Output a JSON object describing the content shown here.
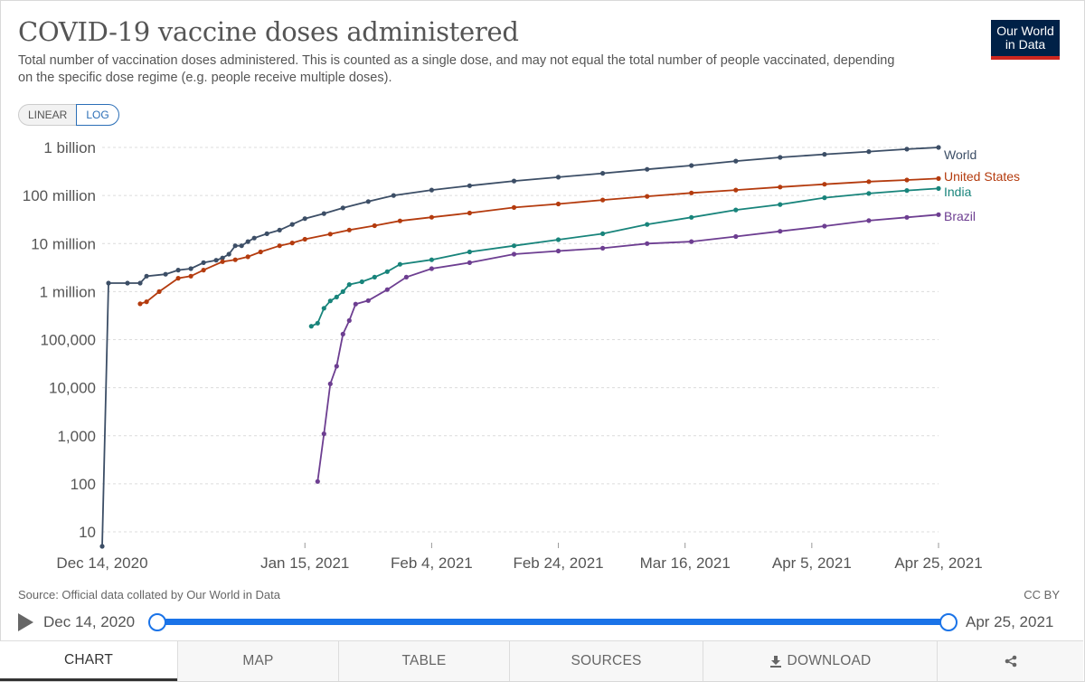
{
  "title": "COVID-19 vaccine doses administered",
  "subtitle": "Total number of vaccination doses administered. This is counted as a single dose, and may not equal the total number of people vaccinated, depending on the specific dose regime (e.g. people receive multiple doses).",
  "logo": {
    "line1": "Our World",
    "line2": "in Data"
  },
  "scale_toggle": {
    "linear_label": "LINEAR",
    "log_label": "LOG",
    "selected": "LOG"
  },
  "source": "Source: Official data collated by Our World in Data",
  "license": "CC BY",
  "timeline": {
    "start_label": "Dec 14, 2020",
    "end_label": "Apr 25, 2021"
  },
  "tabs": {
    "chart": "CHART",
    "map": "MAP",
    "table": "TABLE",
    "sources": "SOURCES",
    "download": "DOWNLOAD"
  },
  "icons": {
    "play": "play-icon",
    "download": "download-icon",
    "share": "share-icon"
  },
  "chart_data": {
    "type": "line",
    "y_scale": "log",
    "title": "COVID-19 vaccine doses administered",
    "ylim": [
      10,
      1000000000
    ],
    "xlim": [
      "2020-12-14",
      "2021-04-25"
    ],
    "y_ticks": [
      {
        "value": 10,
        "label": "10"
      },
      {
        "value": 100,
        "label": "100"
      },
      {
        "value": 1000,
        "label": "1,000"
      },
      {
        "value": 10000,
        "label": "10,000"
      },
      {
        "value": 100000,
        "label": "100,000"
      },
      {
        "value": 1000000,
        "label": "1 million"
      },
      {
        "value": 10000000,
        "label": "10 million"
      },
      {
        "value": 100000000,
        "label": "100 million"
      },
      {
        "value": 1000000000,
        "label": "1 billion"
      }
    ],
    "x_ticks": [
      {
        "date": "2020-12-14",
        "label": "Dec 14, 2020"
      },
      {
        "date": "2021-01-15",
        "label": "Jan 15, 2021"
      },
      {
        "date": "2021-02-04",
        "label": "Feb 4, 2021"
      },
      {
        "date": "2021-02-24",
        "label": "Feb 24, 2021"
      },
      {
        "date": "2021-03-16",
        "label": "Mar 16, 2021"
      },
      {
        "date": "2021-04-05",
        "label": "Apr 5, 2021"
      },
      {
        "date": "2021-04-25",
        "label": "Apr 25, 2021"
      }
    ],
    "grid": true,
    "legend": "inline-right",
    "series": [
      {
        "name": "World",
        "color": "#3c4e66",
        "points": [
          [
            "2020-12-14",
            5
          ],
          [
            "2020-12-15",
            1500000
          ],
          [
            "2020-12-18",
            1500000
          ],
          [
            "2020-12-20",
            1500000
          ],
          [
            "2020-12-21",
            2100000
          ],
          [
            "2020-12-24",
            2300000
          ],
          [
            "2020-12-26",
            2800000
          ],
          [
            "2020-12-28",
            3000000
          ],
          [
            "2020-12-30",
            4000000
          ],
          [
            "2021-01-01",
            4500000
          ],
          [
            "2021-01-02",
            5000000
          ],
          [
            "2021-01-03",
            6000000
          ],
          [
            "2021-01-04",
            9000000
          ],
          [
            "2021-01-05",
            9000000
          ],
          [
            "2021-01-06",
            11000000
          ],
          [
            "2021-01-07",
            13000000
          ],
          [
            "2021-01-09",
            16000000
          ],
          [
            "2021-01-11",
            19000000
          ],
          [
            "2021-01-13",
            25000000
          ],
          [
            "2021-01-15",
            33000000
          ],
          [
            "2021-01-18",
            42000000
          ],
          [
            "2021-01-21",
            55000000
          ],
          [
            "2021-01-25",
            75000000
          ],
          [
            "2021-01-29",
            100000000
          ],
          [
            "2021-02-04",
            130000000
          ],
          [
            "2021-02-10",
            160000000
          ],
          [
            "2021-02-17",
            200000000
          ],
          [
            "2021-02-24",
            240000000
          ],
          [
            "2021-03-03",
            290000000
          ],
          [
            "2021-03-10",
            350000000
          ],
          [
            "2021-03-17",
            420000000
          ],
          [
            "2021-03-24",
            520000000
          ],
          [
            "2021-03-31",
            620000000
          ],
          [
            "2021-04-07",
            720000000
          ],
          [
            "2021-04-14",
            820000000
          ],
          [
            "2021-04-20",
            920000000
          ],
          [
            "2021-04-25",
            1000000000
          ]
        ]
      },
      {
        "name": "United States",
        "color": "#b43b0e",
        "points": [
          [
            "2020-12-20",
            556000
          ],
          [
            "2020-12-21",
            614000
          ],
          [
            "2020-12-23",
            1000000
          ],
          [
            "2020-12-26",
            1900000
          ],
          [
            "2020-12-28",
            2100000
          ],
          [
            "2020-12-30",
            2800000
          ],
          [
            "2021-01-02",
            4200000
          ],
          [
            "2021-01-04",
            4600000
          ],
          [
            "2021-01-06",
            5300000
          ],
          [
            "2021-01-08",
            6700000
          ],
          [
            "2021-01-11",
            9000000
          ],
          [
            "2021-01-13",
            10300000
          ],
          [
            "2021-01-15",
            12300000
          ],
          [
            "2021-01-19",
            15700000
          ],
          [
            "2021-01-22",
            19100000
          ],
          [
            "2021-01-26",
            23500000
          ],
          [
            "2021-01-30",
            29600000
          ],
          [
            "2021-02-04",
            35200000
          ],
          [
            "2021-02-10",
            43200000
          ],
          [
            "2021-02-17",
            56300000
          ],
          [
            "2021-02-24",
            66500000
          ],
          [
            "2021-03-03",
            80500000
          ],
          [
            "2021-03-10",
            95700000
          ],
          [
            "2021-03-17",
            113000000
          ],
          [
            "2021-03-24",
            130000000
          ],
          [
            "2021-03-31",
            150000000
          ],
          [
            "2021-04-07",
            171000000
          ],
          [
            "2021-04-14",
            194000000
          ],
          [
            "2021-04-20",
            210000000
          ],
          [
            "2021-04-25",
            225000000
          ]
        ]
      },
      {
        "name": "India",
        "color": "#18847b",
        "points": [
          [
            "2021-01-16",
            190000
          ],
          [
            "2021-01-17",
            220000
          ],
          [
            "2021-01-18",
            450000
          ],
          [
            "2021-01-19",
            640000
          ],
          [
            "2021-01-20",
            770000
          ],
          [
            "2021-01-21",
            1000000
          ],
          [
            "2021-01-22",
            1400000
          ],
          [
            "2021-01-24",
            1600000
          ],
          [
            "2021-01-26",
            2000000
          ],
          [
            "2021-01-28",
            2600000
          ],
          [
            "2021-01-30",
            3700000
          ],
          [
            "2021-02-04",
            4600000
          ],
          [
            "2021-02-10",
            6700000
          ],
          [
            "2021-02-17",
            9000000
          ],
          [
            "2021-02-24",
            12000000
          ],
          [
            "2021-03-03",
            16000000
          ],
          [
            "2021-03-10",
            25000000
          ],
          [
            "2021-03-17",
            35000000
          ],
          [
            "2021-03-24",
            50000000
          ],
          [
            "2021-03-31",
            65000000
          ],
          [
            "2021-04-07",
            90000000
          ],
          [
            "2021-04-14",
            110000000
          ],
          [
            "2021-04-20",
            127000000
          ],
          [
            "2021-04-25",
            140000000
          ]
        ]
      },
      {
        "name": "Brazil",
        "color": "#6d3e91",
        "points": [
          [
            "2021-01-17",
            112
          ],
          [
            "2021-01-18",
            1100
          ],
          [
            "2021-01-19",
            12000
          ],
          [
            "2021-01-20",
            28000
          ],
          [
            "2021-01-21",
            130000
          ],
          [
            "2021-01-22",
            250000
          ],
          [
            "2021-01-23",
            550000
          ],
          [
            "2021-01-25",
            650000
          ],
          [
            "2021-01-28",
            1100000
          ],
          [
            "2021-01-31",
            2000000
          ],
          [
            "2021-02-04",
            3000000
          ],
          [
            "2021-02-10",
            4000000
          ],
          [
            "2021-02-17",
            6000000
          ],
          [
            "2021-02-24",
            7000000
          ],
          [
            "2021-03-03",
            8000000
          ],
          [
            "2021-03-10",
            10000000
          ],
          [
            "2021-03-17",
            11000000
          ],
          [
            "2021-03-24",
            14000000
          ],
          [
            "2021-03-31",
            18000000
          ],
          [
            "2021-04-07",
            23000000
          ],
          [
            "2021-04-14",
            30000000
          ],
          [
            "2021-04-20",
            35000000
          ],
          [
            "2021-04-25",
            40000000
          ]
        ]
      }
    ]
  }
}
